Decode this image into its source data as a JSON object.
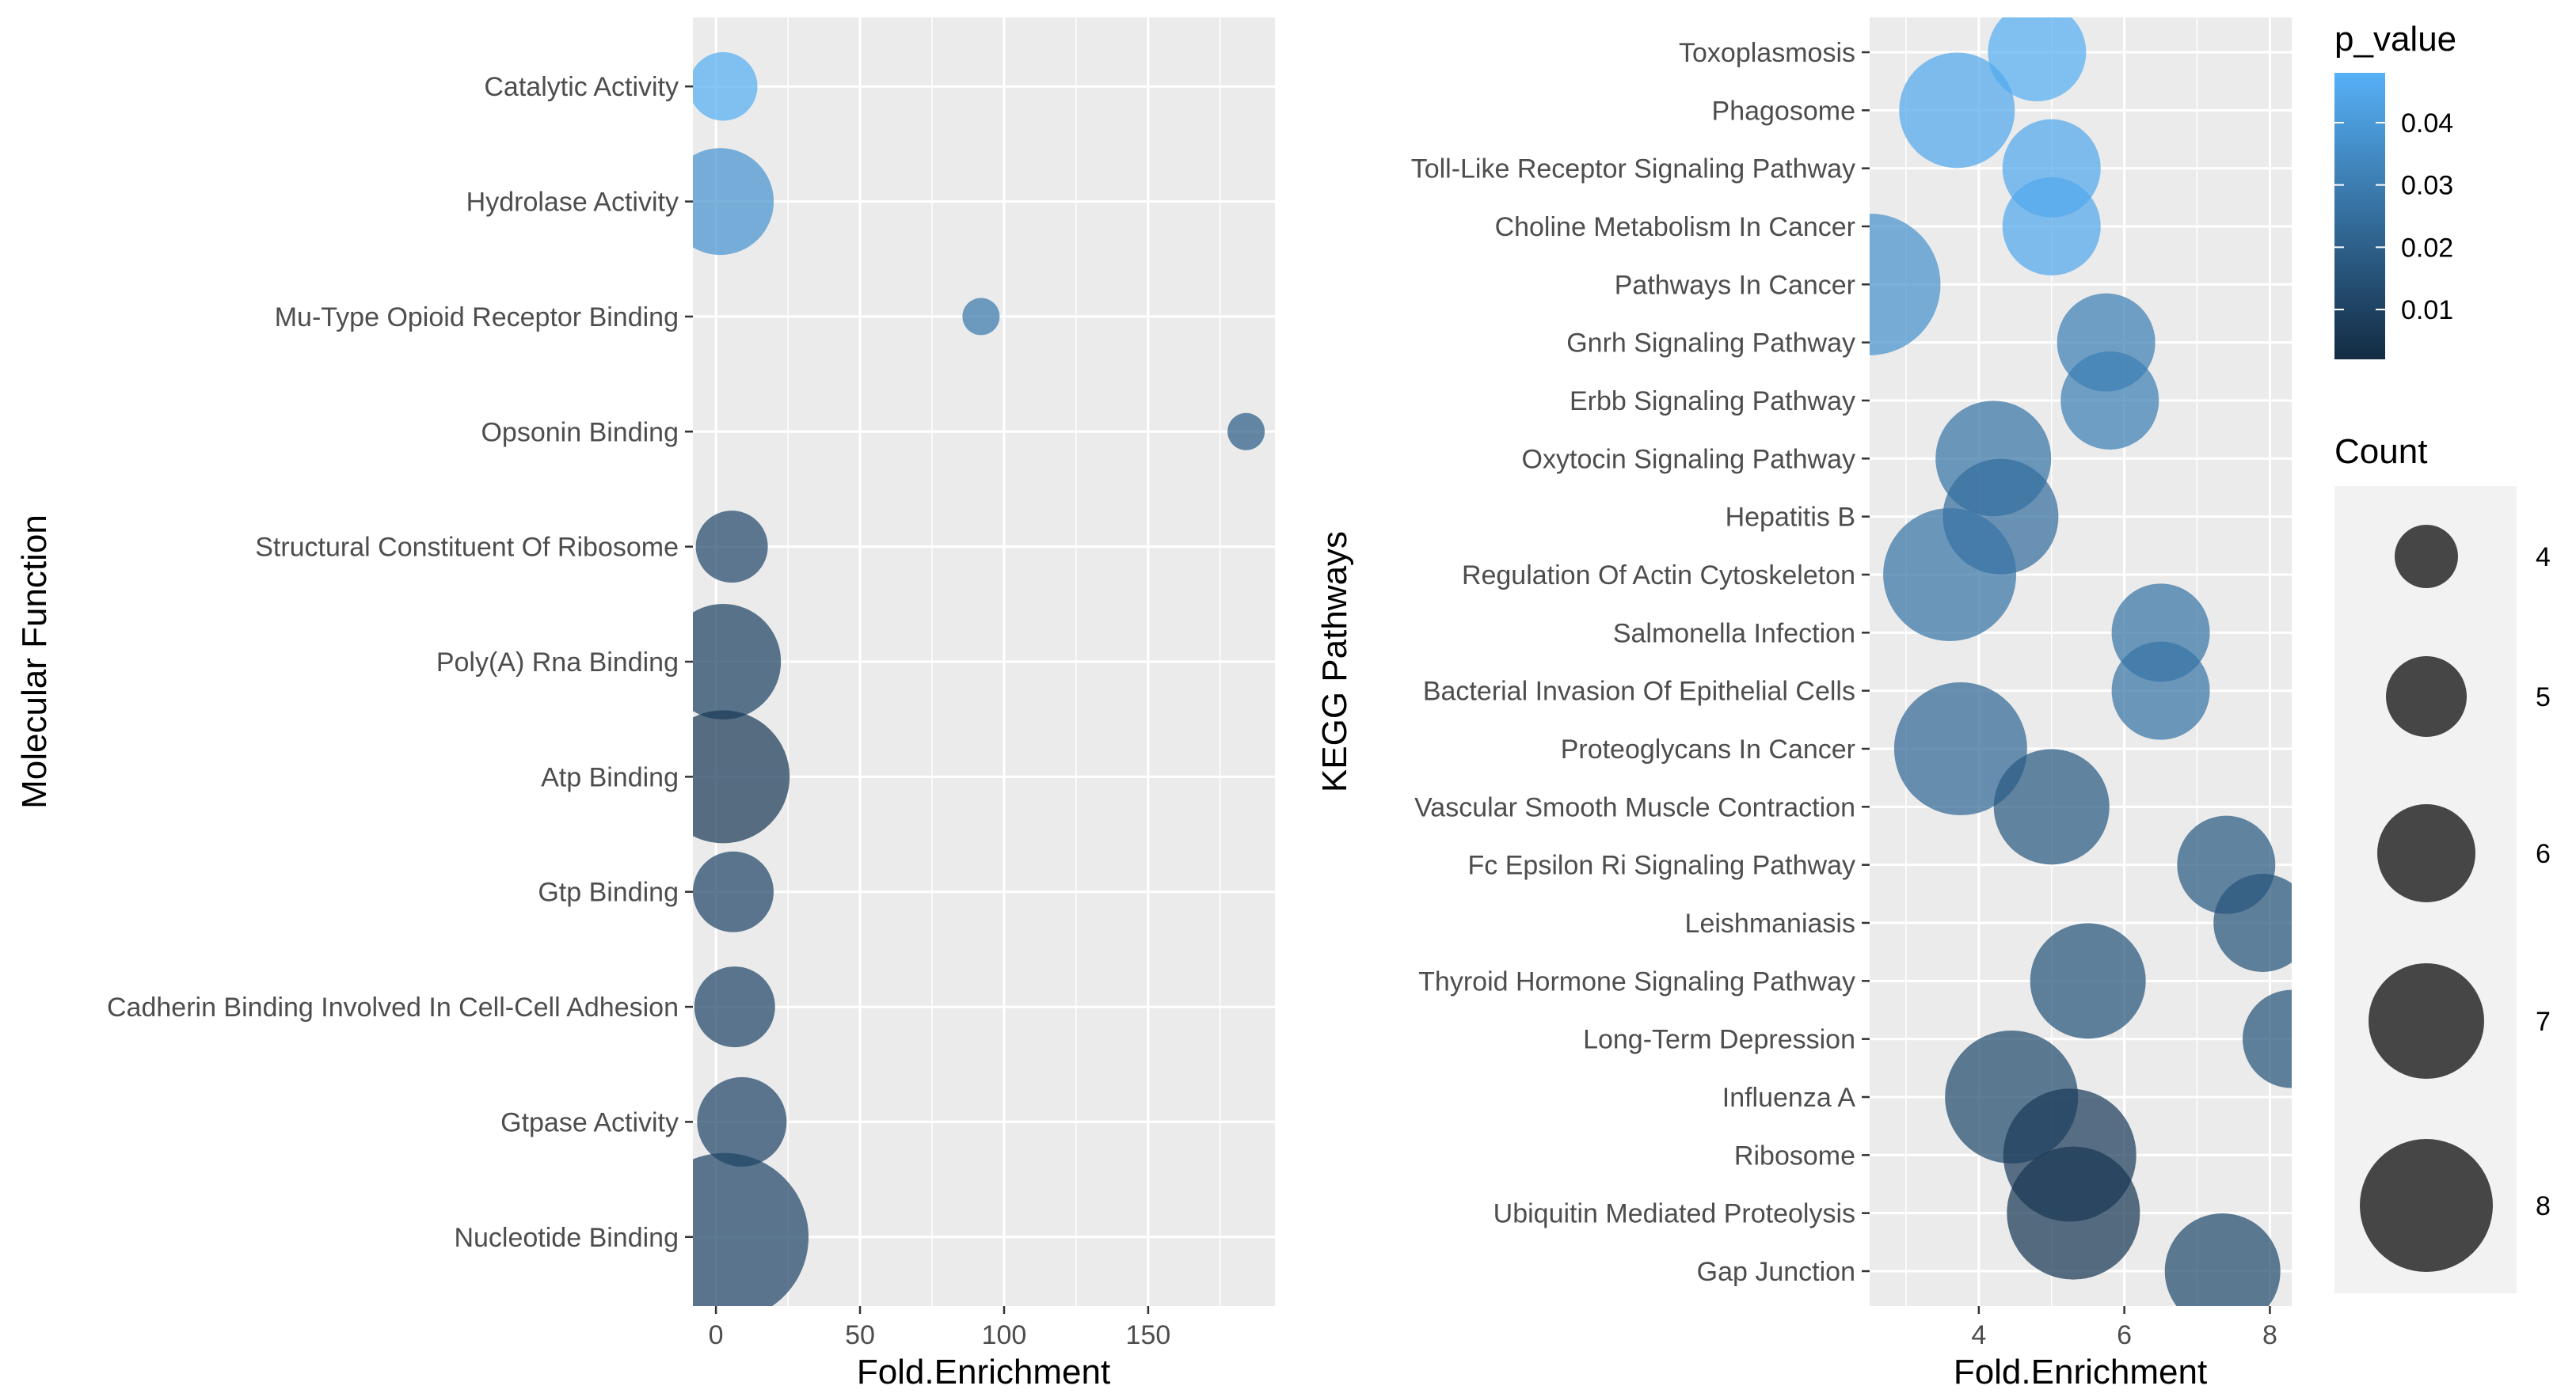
{
  "chart_data": [
    {
      "type": "scatter",
      "xlabel": "Fold.Enrichment",
      "ylabel": "Molecular Function",
      "xlim": [
        -8,
        194
      ],
      "xticks": [
        0,
        50,
        100,
        150
      ],
      "grid": true,
      "categories": [
        "Catalytic Activity",
        "Hydrolase Activity",
        "Mu-Type Opioid Receptor Binding",
        "Opsonin Binding",
        "Structural Constituent Of Ribosome",
        "Poly(A) Rna Binding",
        "Atp Binding",
        "Gtp Binding",
        "Cadherin Binding Involved In Cell-Cell Adhesion",
        "Gtpase Activity",
        "Nucleotide Binding"
      ],
      "points": [
        {
          "term": "Catalytic Activity",
          "x": 2.5,
          "count": 4.3,
          "p_value": 0.047
        },
        {
          "term": "Hydrolase Activity",
          "x": 1.5,
          "count": 6.5,
          "p_value": 0.038
        },
        {
          "term": "Mu-Type Opioid Receptor Binding",
          "x": 92,
          "count": 2.5,
          "p_value": 0.029
        },
        {
          "term": "Opsonin Binding",
          "x": 184,
          "count": 2.5,
          "p_value": 0.019
        },
        {
          "term": "Structural Constituent Of Ribosome",
          "x": 5.5,
          "count": 4.5,
          "p_value": 0.012
        },
        {
          "term": "Poly(A) Rna Binding",
          "x": 2.5,
          "count": 7,
          "p_value": 0.01
        },
        {
          "term": "Atp Binding",
          "x": 2.5,
          "count": 8,
          "p_value": 0.007
        },
        {
          "term": "Gtp Binding",
          "x": 6,
          "count": 5,
          "p_value": 0.011
        },
        {
          "term": "Cadherin Binding Involved In Cell-Cell Adhesion",
          "x": 6.5,
          "count": 5,
          "p_value": 0.011
        },
        {
          "term": "Gtpase Activity",
          "x": 9,
          "count": 5.5,
          "p_value": 0.011
        },
        {
          "term": "Nucleotide Binding",
          "x": 3,
          "count": 10,
          "p_value": 0.011
        }
      ]
    },
    {
      "type": "scatter",
      "xlabel": "Fold.Enrichment",
      "ylabel": "KEGG Pathways",
      "xlim": [
        2.5,
        8.3
      ],
      "xticks": [
        4,
        6,
        8
      ],
      "grid": true,
      "categories": [
        "Toxoplasmosis",
        "Phagosome",
        "Toll-Like Receptor Signaling Pathway",
        "Choline Metabolism In Cancer",
        "Pathways In Cancer",
        "Gnrh Signaling Pathway",
        "Erbb Signaling Pathway",
        "Oxytocin Signaling Pathway",
        "Hepatitis B",
        "Regulation Of Actin Cytoskeleton",
        "Salmonella Infection",
        "Bacterial Invasion Of Epithelial Cells",
        "Proteoglycans In Cancer",
        "Vascular Smooth Muscle Contraction",
        "Fc Epsilon Ri Signaling Pathway",
        "Leishmaniasis",
        "Thyroid Hormone Signaling Pathway",
        "Long-Term Depression",
        "Influenza A",
        "Ribosome",
        "Ubiquitin Mediated Proteolysis",
        "Gap Junction"
      ],
      "points": [
        {
          "term": "Toxoplasmosis",
          "x": 4.8,
          "count": 6,
          "p_value": 0.047
        },
        {
          "term": "Phagosome",
          "x": 3.7,
          "count": 7,
          "p_value": 0.045
        },
        {
          "term": "Toll-Like Receptor Signaling Pathway",
          "x": 5.0,
          "count": 6,
          "p_value": 0.045
        },
        {
          "term": "Choline Metabolism In Cancer",
          "x": 5.0,
          "count": 6,
          "p_value": 0.045
        },
        {
          "term": "Pathways In Cancer",
          "x": 2.5,
          "count": 8.5,
          "p_value": 0.037
        },
        {
          "term": "Gnrh Signaling Pathway",
          "x": 5.75,
          "count": 6,
          "p_value": 0.031
        },
        {
          "term": "Erbb Signaling Pathway",
          "x": 5.8,
          "count": 6,
          "p_value": 0.031
        },
        {
          "term": "Oxytocin Signaling Pathway",
          "x": 4.2,
          "count": 7,
          "p_value": 0.027
        },
        {
          "term": "Hepatitis B",
          "x": 4.3,
          "count": 7,
          "p_value": 0.025
        },
        {
          "term": "Regulation Of Actin Cytoskeleton",
          "x": 3.6,
          "count": 8,
          "p_value": 0.027
        },
        {
          "term": "Salmonella Infection",
          "x": 6.5,
          "count": 6,
          "p_value": 0.027
        },
        {
          "term": "Bacterial Invasion Of Epithelial Cells",
          "x": 6.5,
          "count": 6,
          "p_value": 0.027
        },
        {
          "term": "Proteoglycans In Cancer",
          "x": 3.75,
          "count": 8,
          "p_value": 0.023
        },
        {
          "term": "Vascular Smooth Muscle Contraction",
          "x": 5.0,
          "count": 7,
          "p_value": 0.018
        },
        {
          "term": "Fc Epsilon Ri Signaling Pathway",
          "x": 7.4,
          "count": 6,
          "p_value": 0.018
        },
        {
          "term": "Leishmaniasis",
          "x": 7.9,
          "count": 6,
          "p_value": 0.016
        },
        {
          "term": "Thyroid Hormone Signaling Pathway",
          "x": 5.5,
          "count": 7,
          "p_value": 0.016
        },
        {
          "term": "Long-Term Depression",
          "x": 8.3,
          "count": 6,
          "p_value": 0.016
        },
        {
          "term": "Influenza A",
          "x": 4.45,
          "count": 8,
          "p_value": 0.013
        },
        {
          "term": "Ribosome",
          "x": 5.25,
          "count": 8,
          "p_value": 0.008
        },
        {
          "term": "Ubiquitin Mediated Proteolysis",
          "x": 5.3,
          "count": 8,
          "p_value": 0.006
        },
        {
          "term": "Gap Junction",
          "x": 7.35,
          "count": 7,
          "p_value": 0.013
        }
      ]
    }
  ],
  "legend": {
    "color_title": "p_value",
    "color_ticks": [
      "0.04",
      "0.03",
      "0.02",
      "0.01"
    ],
    "color_tick_values": [
      0.04,
      0.03,
      0.02,
      0.01
    ],
    "color_low": "#132B43",
    "color_high": "#56B1F7",
    "color_range": [
      0.002,
      0.048
    ],
    "size_title": "Count",
    "size_labels": [
      "4",
      "5",
      "6",
      "7",
      "8"
    ],
    "size_values": [
      4,
      5,
      6,
      7,
      8
    ]
  }
}
